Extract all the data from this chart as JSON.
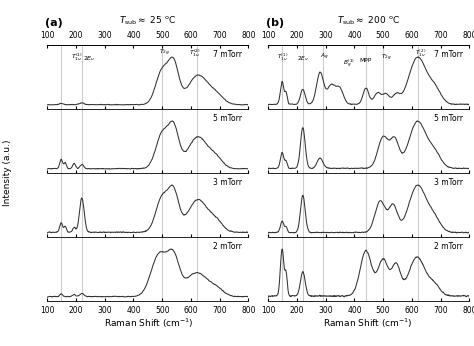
{
  "xlabel": "Raman Shift (cm$^{-1}$)",
  "ylabel": "Intensity (a.u.)",
  "pressures": [
    "7 mTorr",
    "5 mTorr",
    "3 mTorr",
    "2 mTorr"
  ],
  "panel_a_vlines": [
    148,
    220,
    500,
    620
  ],
  "panel_b_vlines": [
    148,
    220,
    290,
    440,
    500,
    620
  ],
  "bg_color": "#ffffff",
  "line_color": "#333333",
  "vline_color": "#cccccc"
}
